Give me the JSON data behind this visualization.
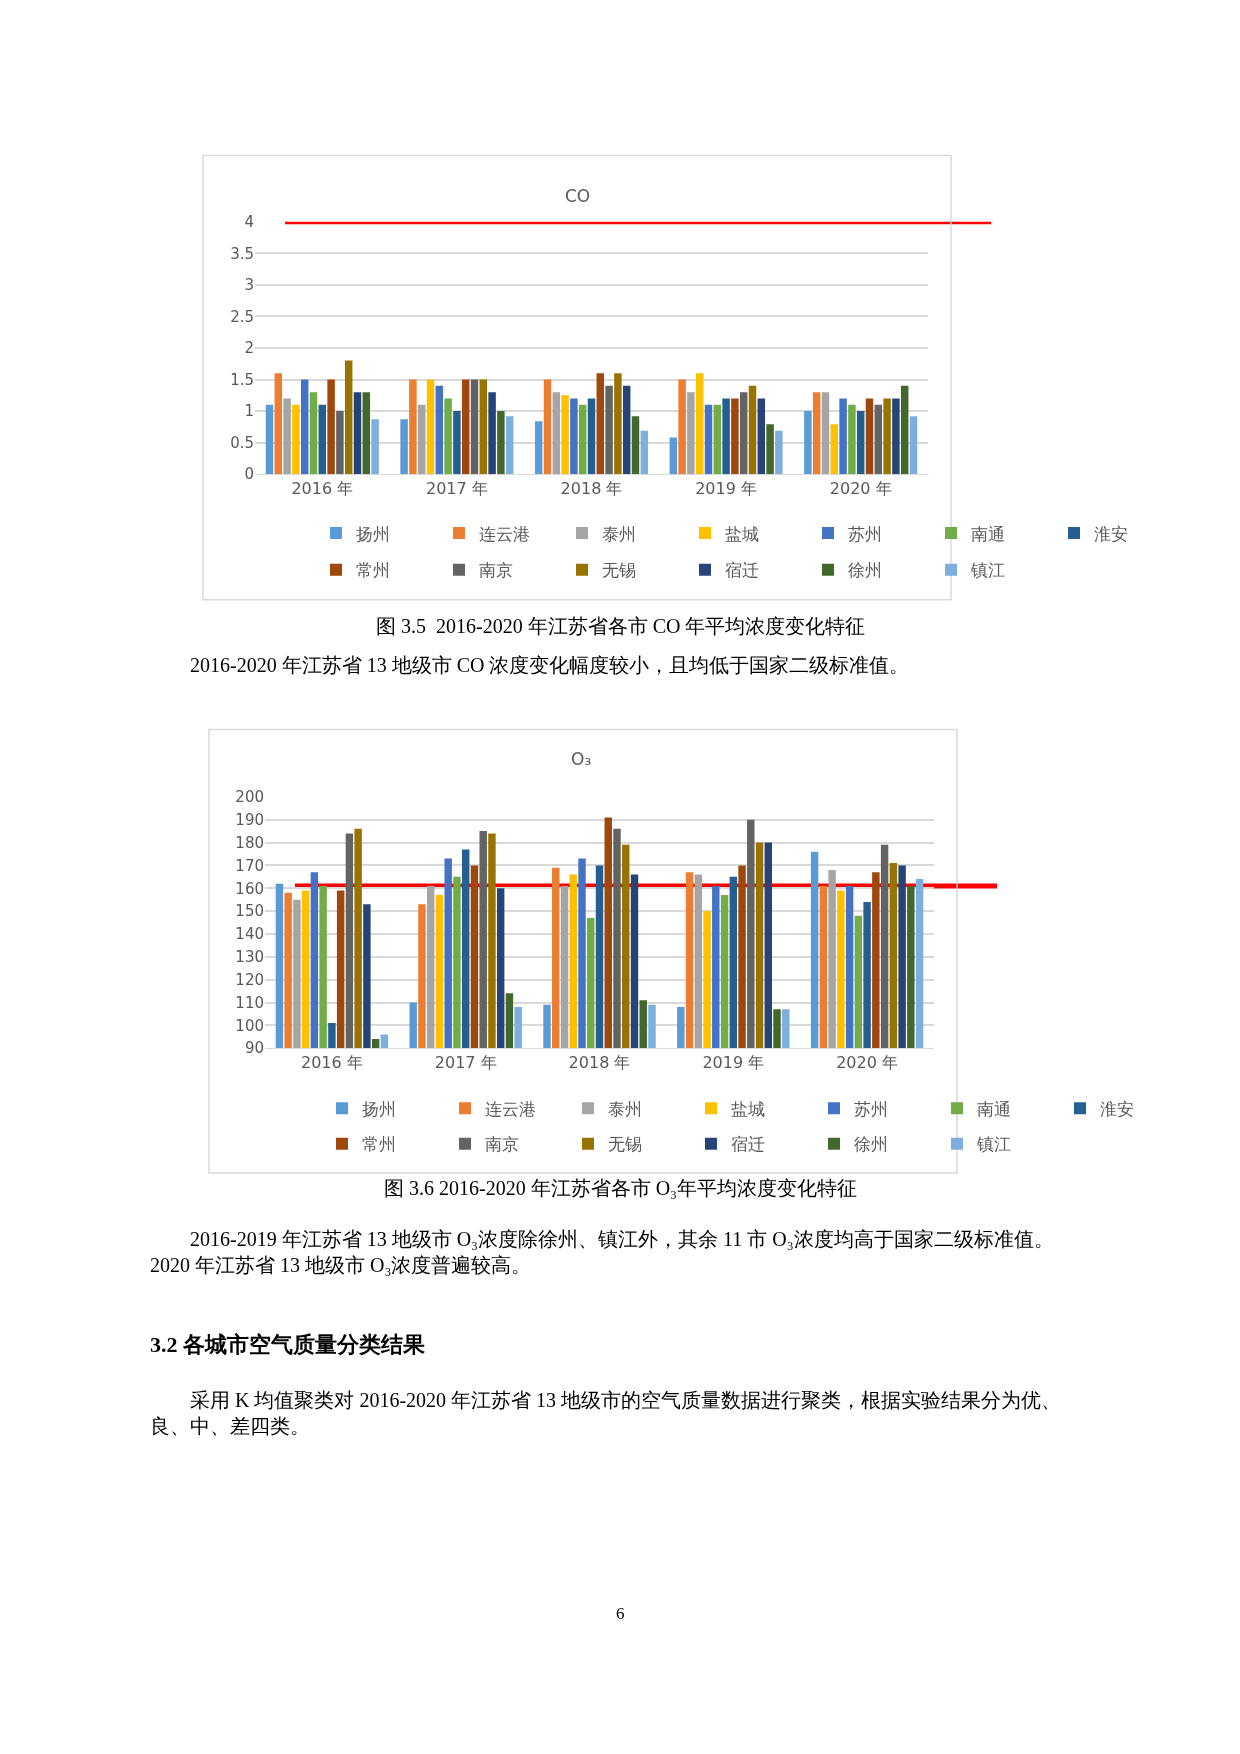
{
  "chart_data": [
    {
      "type": "bar",
      "title": "CO",
      "categories": [
        "2016 年",
        "2017 年",
        "2018 年",
        "2019 年",
        "2020 年"
      ],
      "series": [
        {
          "name": "扬州",
          "color": "#5b9bd5",
          "values": [
            1.1,
            0.87,
            0.84,
            0.58,
            1.0
          ]
        },
        {
          "name": "连云港",
          "color": "#ed7d31",
          "values": [
            1.6,
            1.5,
            1.5,
            1.5,
            1.3
          ]
        },
        {
          "name": "泰州",
          "color": "#a5a5a5",
          "values": [
            1.2,
            1.1,
            1.3,
            1.3,
            1.3
          ]
        },
        {
          "name": "盐城",
          "color": "#ffc000",
          "values": [
            1.1,
            1.5,
            1.25,
            1.6,
            0.79
          ]
        },
        {
          "name": "苏州",
          "color": "#4472c4",
          "values": [
            1.5,
            1.4,
            1.2,
            1.1,
            1.2
          ]
        },
        {
          "name": "南通",
          "color": "#70ad47",
          "values": [
            1.3,
            1.2,
            1.1,
            1.1,
            1.1
          ]
        },
        {
          "name": "淮安",
          "color": "#255e91",
          "values": [
            1.1,
            1.0,
            1.2,
            1.2,
            1.0
          ]
        },
        {
          "name": "常州",
          "color": "#9e480e",
          "values": [
            1.5,
            1.5,
            1.6,
            1.2,
            1.2
          ]
        },
        {
          "name": "南京",
          "color": "#636363",
          "values": [
            1.0,
            1.5,
            1.4,
            1.3,
            1.1
          ]
        },
        {
          "name": "无锡",
          "color": "#997300",
          "values": [
            1.8,
            1.5,
            1.6,
            1.4,
            1.2
          ]
        },
        {
          "name": "宿迁",
          "color": "#264478",
          "values": [
            1.3,
            1.3,
            1.4,
            1.2,
            1.2
          ]
        },
        {
          "name": "徐州",
          "color": "#43682b",
          "values": [
            1.3,
            1.0,
            0.92,
            0.79,
            1.4
          ]
        },
        {
          "name": "镇江",
          "color": "#7cafdd",
          "values": [
            0.87,
            0.92,
            0.69,
            0.69,
            0.92
          ]
        }
      ],
      "ylim": [
        0,
        4
      ],
      "yticks": [
        0,
        0.5,
        1,
        1.5,
        2,
        2.5,
        3,
        3.5,
        4
      ],
      "grid": "y",
      "legend": "bottom",
      "ref_lines": [
        {
          "axis": "y",
          "value": 4,
          "color": "#ff0000"
        }
      ],
      "annotations": [
        "图 3.5  2016-2020 年江苏省各市 CO 年平均浓度变化特征",
        "2016-2020 年江苏省 13 地级市 CO 浓度变化幅度较小，且均低于国家二级标准值。"
      ]
    },
    {
      "type": "bar",
      "title": "O₃",
      "categories": [
        "2016 年",
        "2017 年",
        "2018 年",
        "2019 年",
        "2020 年"
      ],
      "series": [
        {
          "name": "扬州",
          "color": "#5b9bd5",
          "values": [
            162,
            110,
            109,
            108,
            176
          ]
        },
        {
          "name": "连云港",
          "color": "#ed7d31",
          "values": [
            158,
            153,
            169,
            167,
            161
          ]
        },
        {
          "name": "泰州",
          "color": "#a5a5a5",
          "values": [
            155,
            161,
            161,
            166,
            168
          ]
        },
        {
          "name": "盐城",
          "color": "#ffc000",
          "values": [
            159,
            157,
            166,
            150,
            159
          ]
        },
        {
          "name": "苏州",
          "color": "#4472c4",
          "values": [
            167,
            173,
            173,
            161,
            161
          ]
        },
        {
          "name": "南通",
          "color": "#70ad47",
          "values": [
            161,
            165,
            147,
            157,
            148
          ]
        },
        {
          "name": "淮安",
          "color": "#255e91",
          "values": [
            101,
            177,
            170,
            165,
            154
          ]
        },
        {
          "name": "常州",
          "color": "#9e480e",
          "values": [
            159,
            170,
            191,
            170,
            167
          ]
        },
        {
          "name": "南京",
          "color": "#636363",
          "values": [
            184,
            185,
            186,
            190,
            179
          ]
        },
        {
          "name": "无锡",
          "color": "#997300",
          "values": [
            186,
            184,
            179,
            180,
            171
          ]
        },
        {
          "name": "宿迁",
          "color": "#264478",
          "values": [
            153,
            160,
            166,
            180,
            170
          ]
        },
        {
          "name": "徐州",
          "color": "#43682b",
          "values": [
            94,
            114,
            111,
            107,
            161
          ]
        },
        {
          "name": "镇江",
          "color": "#7cafdd",
          "values": [
            96,
            108,
            109,
            107,
            164
          ]
        }
      ],
      "ylim": [
        90,
        200
      ],
      "yticks": [
        90,
        100,
        110,
        120,
        130,
        140,
        150,
        160,
        170,
        180,
        190,
        200
      ],
      "grid": "y",
      "legend": "bottom",
      "ref_lines": [
        {
          "axis": "y",
          "value": 161,
          "color": "#ff0000"
        }
      ],
      "annotations": [
        "图 3.6 2016-2020 年江苏省各市 O₃年平均浓度变化特征",
        "2016-2019 年江苏省 13 地级市 O₃浓度除徐州、镇江外，其余 11 市 O₃浓度均高于国家二级标准值。2020 年江苏省 13 地级市 O₃浓度普遍较高。",
        "3.2 各城市空气质量分类结果",
        "采用 K 均值聚类对 2016-2020 年江苏省 13 地级市的空气质量数据进行聚类，根据实验结果分为优、良、中、差四类。",
        "6"
      ]
    }
  ]
}
